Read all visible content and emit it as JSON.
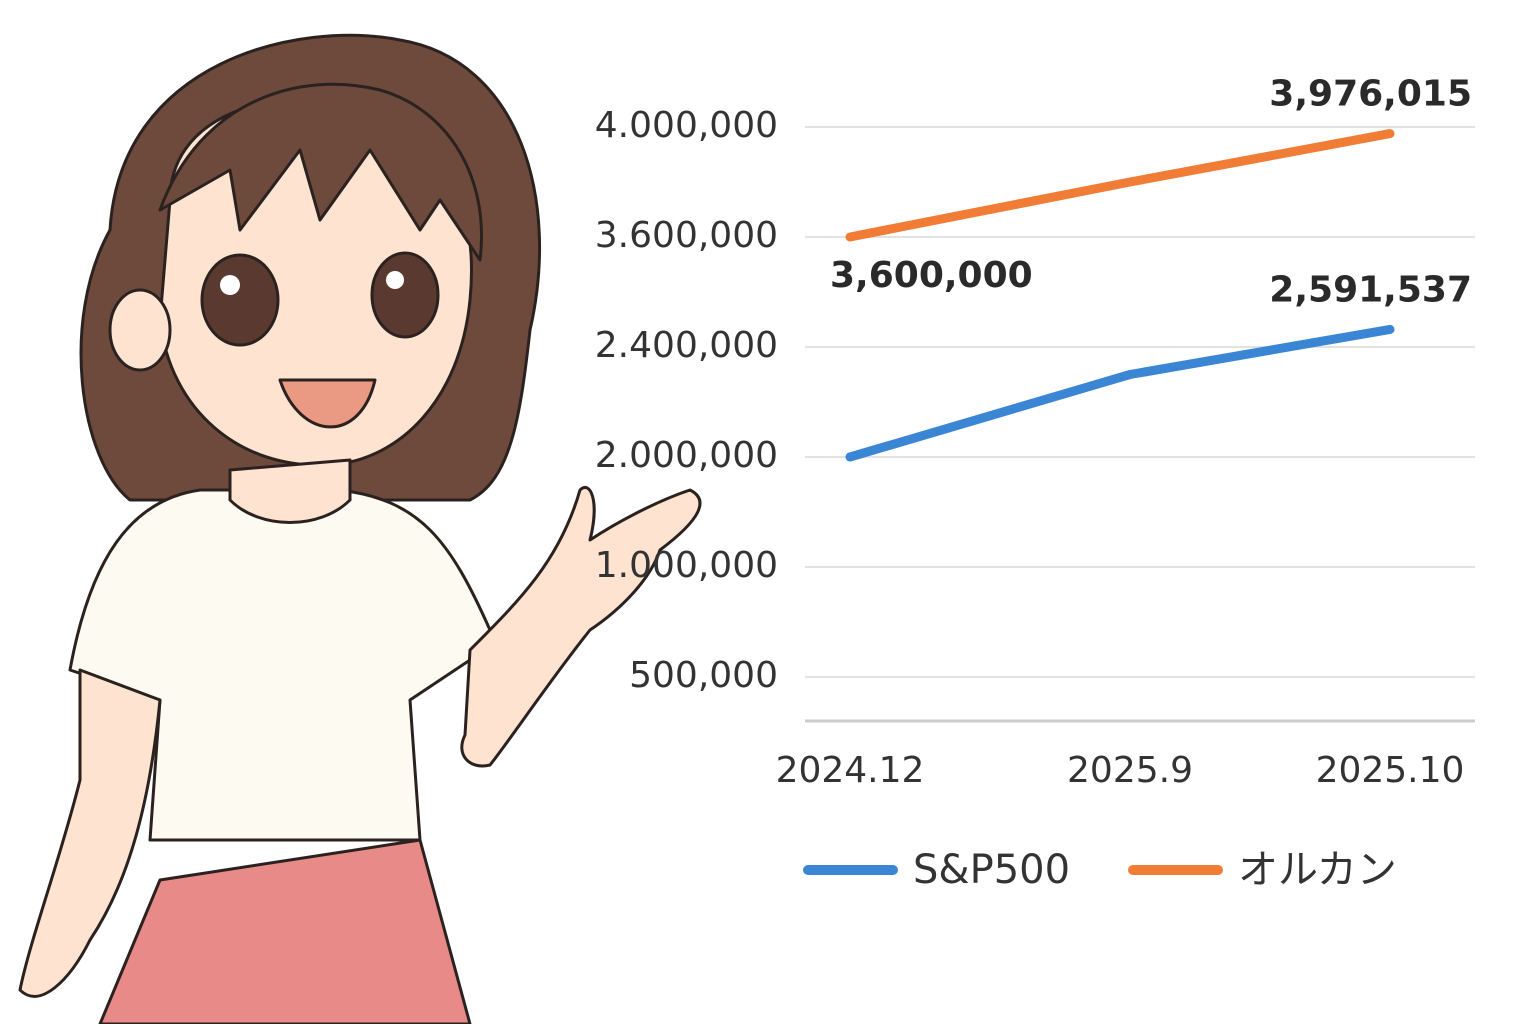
{
  "chart_data": {
    "type": "line",
    "categories": [
      "2024.12",
      "2025.9",
      "2025.10"
    ],
    "series": [
      {
        "name": "S&P500",
        "color": "#3a86d4",
        "values": [
          2000000,
          2300000,
          2591537
        ],
        "value_labels": [
          null,
          null,
          "2,591,537"
        ]
      },
      {
        "name": "オルカン",
        "color": "#f07c35",
        "values": [
          3600000,
          3800000,
          3976015
        ],
        "value_labels": [
          "3,600,000",
          null,
          "3,976,015"
        ]
      }
    ],
    "ylim": [
      300000,
      4000000
    ],
    "yticks": [
      {
        "value": 500000,
        "label": "500,000"
      },
      {
        "value": 1000000,
        "label": "1.000,000"
      },
      {
        "value": 2000000,
        "label": "2.000,000"
      },
      {
        "value": 2400000,
        "label": "2.400,000"
      },
      {
        "value": 3600000,
        "label": "3.600,000"
      },
      {
        "value": 4000000,
        "label": "4.000,000"
      }
    ],
    "grid": true,
    "legend": "bottom"
  }
}
